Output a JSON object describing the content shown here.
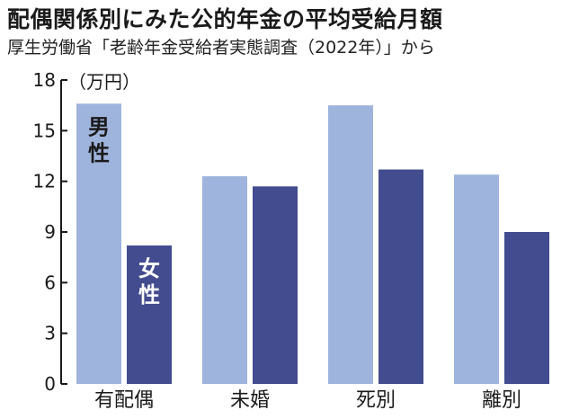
{
  "title": "配偶関係別にみた公的年金の平均受給月額",
  "subtitle": "厚生労働省「老齢年金受給者実態調査（2022年）」から",
  "colors": {
    "male": "#9fb4dd",
    "female": "#424c8e",
    "axis": "#1a1a1a"
  },
  "chart_data": {
    "type": "bar",
    "unit": "（万円）",
    "categories": [
      "有配偶",
      "未婚",
      "死別",
      "離別"
    ],
    "series": [
      {
        "name": "男性",
        "values": [
          16.6,
          12.3,
          16.5,
          12.4
        ]
      },
      {
        "name": "女性",
        "values": [
          8.2,
          11.7,
          12.7,
          9.0
        ]
      }
    ],
    "yticks": [
      0,
      3,
      6,
      9,
      12,
      15,
      18
    ],
    "ylim": [
      0,
      18
    ],
    "grid": false,
    "legend": "inside-bars"
  }
}
